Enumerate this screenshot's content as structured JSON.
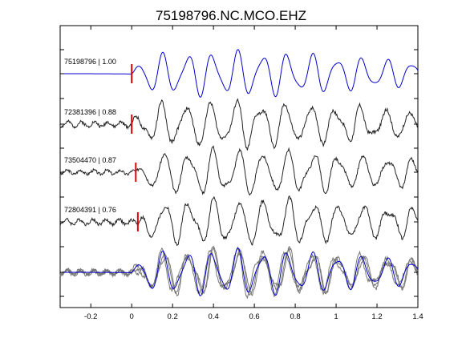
{
  "chart_data": {
    "type": "line",
    "title": "75198796.NC.MCO.EHZ",
    "xlabel": "",
    "ylabel": "",
    "xlim": [
      -0.35,
      1.4
    ],
    "x_ticks": [
      -0.2,
      0,
      0.2,
      0.4,
      0.6,
      0.8,
      1,
      1.2,
      1.4
    ],
    "x_tick_labels": [
      "-0.2",
      "0",
      "0.2",
      "0.4",
      "0.6",
      "0.8",
      "1",
      "1.2",
      "1.4"
    ],
    "grid": false,
    "traces": [
      {
        "label": "75198796 | 1.00",
        "pick_time": 0.0,
        "color": "#0000cc",
        "amplitude": 1.0,
        "noise": 0.0,
        "seed": 1
      },
      {
        "label": "72381396 | 0.88",
        "pick_time": 0.0,
        "color": "#222222",
        "amplitude": 1.0,
        "noise": 0.35,
        "seed": 2
      },
      {
        "label": "73504470 | 0.87",
        "pick_time": 0.02,
        "color": "#222222",
        "amplitude": 1.0,
        "noise": 0.3,
        "seed": 3
      },
      {
        "label": "72804391 | 0.76",
        "pick_time": 0.03,
        "color": "#222222",
        "amplitude": 1.0,
        "noise": 0.35,
        "seed": 4
      }
    ],
    "stack": {
      "description_colors": {
        "reference": "#0000cc",
        "others": "#777777"
      }
    }
  }
}
